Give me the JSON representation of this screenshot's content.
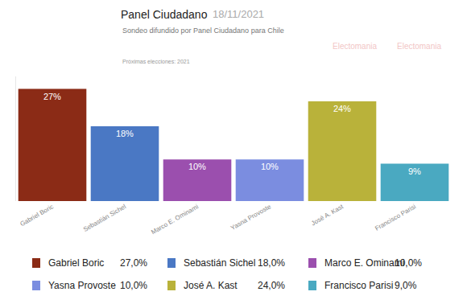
{
  "chart_data": {
    "type": "bar",
    "title": "Panel Ciudadano",
    "subtitle": "Sondeo difundido por Panel Ciudadano para Chile",
    "annotations": [
      "18/11/2021",
      "Próximas elecciones: 2021"
    ],
    "watermark": "Electomania",
    "categories": [
      "Gabriel Boric",
      "Sebastián Sichel",
      "Marco E. Ominami",
      "Yasna Provoste",
      "José A. Kast",
      "Francisco Parisi"
    ],
    "values": [
      27,
      18,
      10,
      10,
      24,
      9
    ],
    "value_labels": [
      "27%",
      "18%",
      "10%",
      "10%",
      "24%",
      "9%"
    ],
    "legend_value_labels": [
      "27,0%",
      "18,0%",
      "10,0%",
      "10,0%",
      "24,0%",
      "9,0%"
    ],
    "colors": [
      "#8b2b16",
      "#4a78c4",
      "#9b4fae",
      "#7b8de0",
      "#b9b23a",
      "#4aa9c1"
    ],
    "ylim": [
      0,
      30
    ],
    "yticks": [
      0,
      30
    ],
    "data_labels": true,
    "tick_labels": "x",
    "grid": false
  }
}
